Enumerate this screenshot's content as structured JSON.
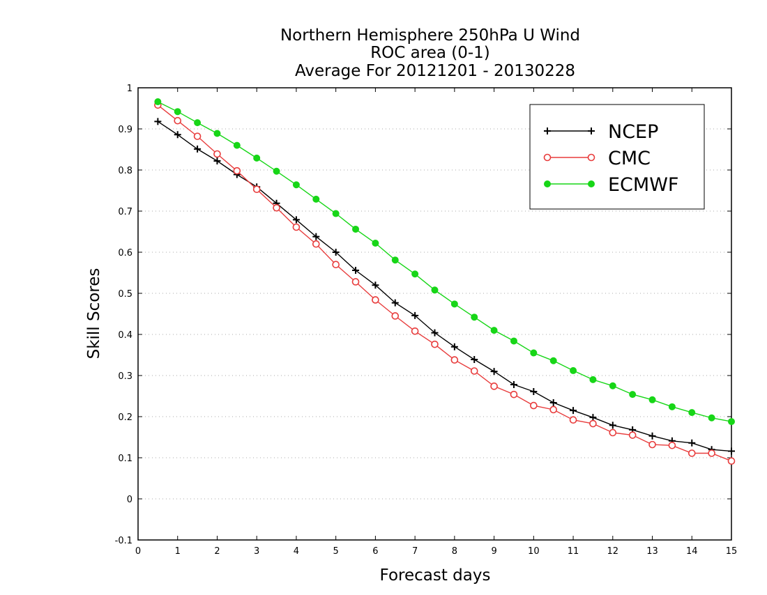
{
  "chart_data": {
    "type": "line",
    "title": [
      "Northern Hemisphere 250hPa U Wind",
      "ROC area (0-1)",
      "Average For 20121201 - 20130228"
    ],
    "xlabel": "Forecast days",
    "ylabel": "Skill Scores",
    "xlim": [
      0,
      15
    ],
    "ylim": [
      -0.1,
      1
    ],
    "xticks": [
      "0",
      "1",
      "2",
      "3",
      "4",
      "5",
      "6",
      "7",
      "8",
      "9",
      "10",
      "11",
      "12",
      "13",
      "14",
      "15"
    ],
    "yticks": [
      "-0.1",
      "0",
      "0.1",
      "0.2",
      "0.3",
      "0.4",
      "0.5",
      "0.6",
      "0.7",
      "0.8",
      "0.9",
      "1"
    ],
    "grid": "horizontal dotted",
    "legend_position": "top-right",
    "x": [
      0.5,
      1,
      1.5,
      2,
      2.5,
      3,
      3.5,
      4,
      4.5,
      5,
      5.5,
      6,
      6.5,
      7,
      7.5,
      8,
      8.5,
      9,
      9.5,
      10,
      10.5,
      11,
      11.5,
      12,
      12.5,
      13,
      13.5,
      14,
      14.5,
      15
    ],
    "series": [
      {
        "name": "NCEP",
        "color": "#000000",
        "marker": "plus",
        "values": [
          0.918,
          0.886,
          0.851,
          0.822,
          0.789,
          0.759,
          0.719,
          0.679,
          0.638,
          0.6,
          0.556,
          0.52,
          0.477,
          0.446,
          0.404,
          0.37,
          0.339,
          0.31,
          0.278,
          0.261,
          0.234,
          0.215,
          0.198,
          0.179,
          0.168,
          0.153,
          0.141,
          0.136,
          0.12,
          0.116
        ]
      },
      {
        "name": "CMC",
        "color": "#e83c3c",
        "marker": "open-circle",
        "values": [
          0.958,
          0.92,
          0.882,
          0.839,
          0.798,
          0.753,
          0.708,
          0.661,
          0.62,
          0.57,
          0.528,
          0.484,
          0.445,
          0.408,
          0.376,
          0.338,
          0.311,
          0.274,
          0.254,
          0.227,
          0.217,
          0.192,
          0.183,
          0.161,
          0.155,
          0.132,
          0.13,
          0.111,
          0.111,
          0.092
        ]
      },
      {
        "name": "ECMWF",
        "color": "#17d617",
        "marker": "filled-circle",
        "values": [
          0.966,
          0.942,
          0.915,
          0.889,
          0.86,
          0.829,
          0.797,
          0.764,
          0.729,
          0.694,
          0.656,
          0.622,
          0.581,
          0.547,
          0.508,
          0.474,
          0.442,
          0.41,
          0.384,
          0.355,
          0.336,
          0.312,
          0.29,
          0.275,
          0.254,
          0.241,
          0.224,
          0.21,
          0.197,
          0.188
        ]
      }
    ]
  }
}
